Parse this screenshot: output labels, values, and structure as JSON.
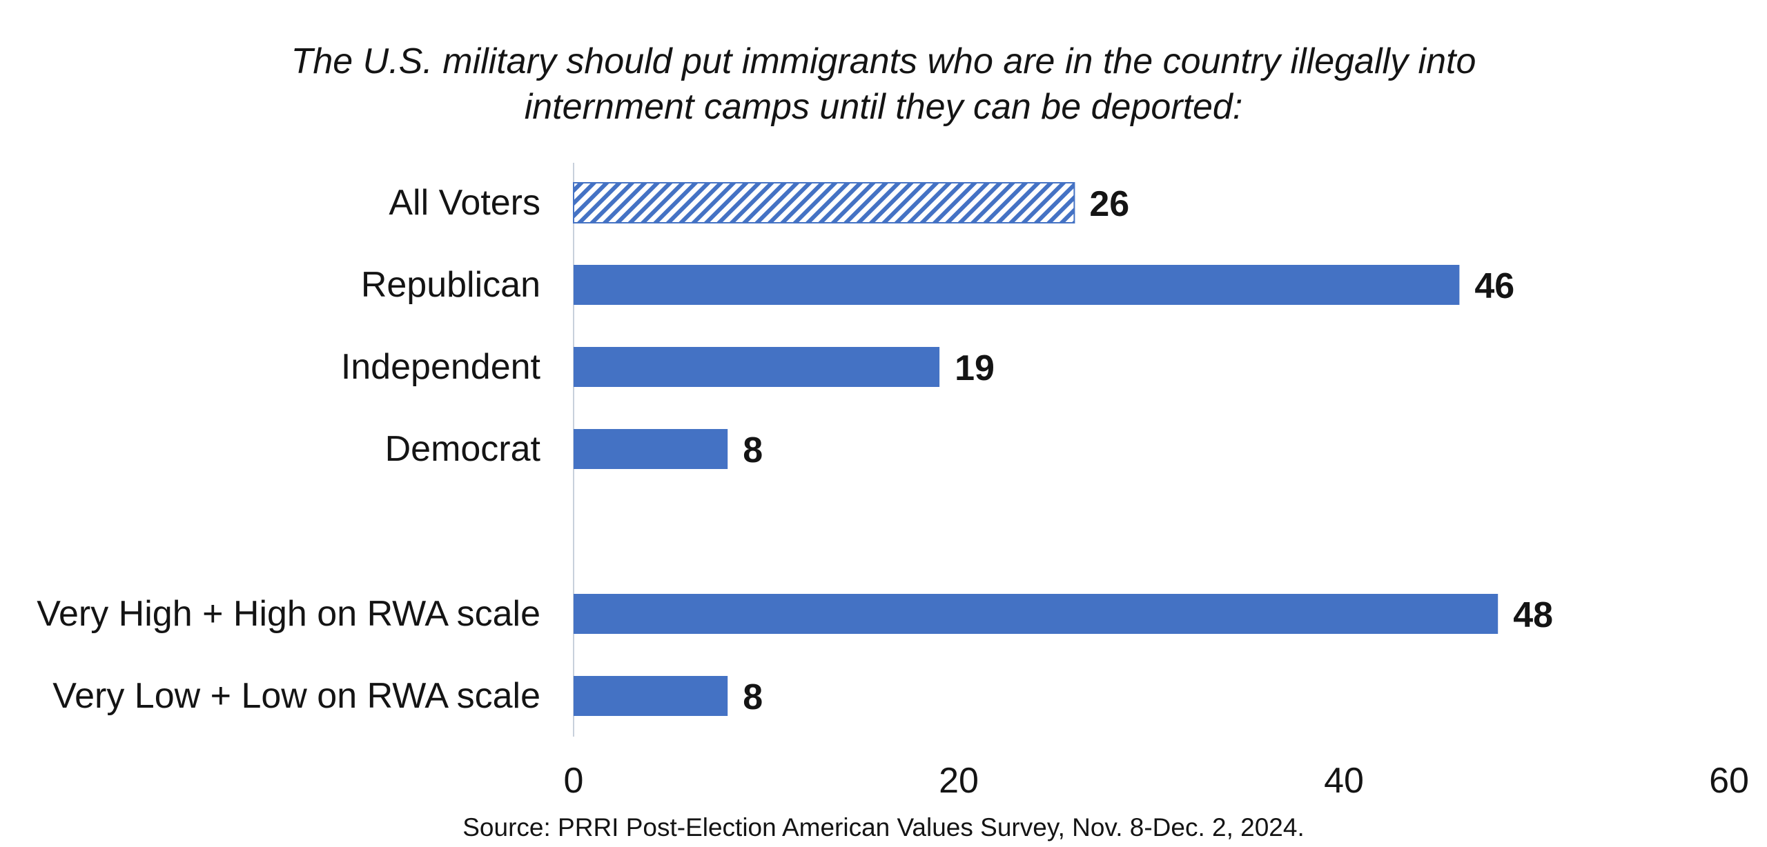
{
  "chart_data": {
    "type": "bar",
    "orientation": "horizontal",
    "title_lines": [
      "The U.S. military should put immigrants who are in the country illegally into",
      "internment camps until they can be deported:"
    ],
    "categories": [
      "All Voters",
      "Republican",
      "Independent",
      "Democrat",
      "Very High + High on RWA scale",
      "Very Low + Low on RWA scale"
    ],
    "values": [
      26,
      46,
      19,
      8,
      48,
      8
    ],
    "data_labels": [
      "26",
      "46",
      "19",
      "8",
      "48",
      "8"
    ],
    "highlighted_category": "All Voters",
    "highlight_style": "hatched",
    "xlim": [
      0,
      60
    ],
    "x_ticks": [
      0,
      20,
      40,
      60
    ],
    "x_tick_labels": [
      "0",
      "20",
      "40",
      "60"
    ],
    "xlabel": "",
    "ylabel": "",
    "grid": false,
    "legend": "none",
    "source": "Source: PRRI Post-Election American Values Survey, Nov. 8-Dec. 2, 2024."
  },
  "colors": {
    "bar": "#4472c4",
    "text": "#141414",
    "axis_line": "#c8d0dc",
    "background": "#ffffff"
  }
}
